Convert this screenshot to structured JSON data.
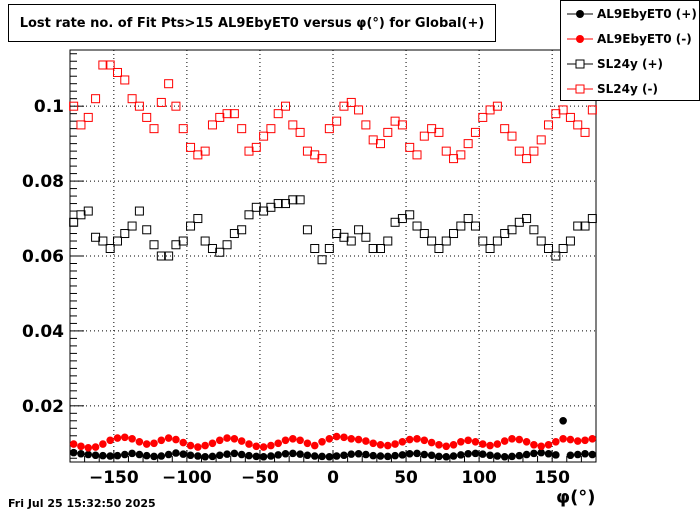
{
  "chart_data": {
    "type": "scatter",
    "title": "Lost rate no. of Fit Pts>15 AL9EbyET0 versus φ(°) for Global(+)",
    "xlabel": "φ(°)",
    "ylabel": "",
    "xlim": [
      -180,
      180
    ],
    "ylim": [
      0.005,
      0.115
    ],
    "grid": true,
    "legend_position": "top-right",
    "x_ticks": [
      -150,
      -100,
      -50,
      0,
      50,
      100,
      150
    ],
    "x_tick_labels": [
      "−150",
      "−100",
      "−50",
      "0",
      "50",
      "100",
      "150"
    ],
    "y_ticks": [
      0.02,
      0.04,
      0.06,
      0.08,
      0.1
    ],
    "y_tick_labels": [
      "0.02",
      "0.04",
      "0.06",
      "0.08",
      "0.1"
    ],
    "x": [
      -177.5,
      -172.5,
      -167.5,
      -162.5,
      -157.5,
      -152.5,
      -147.5,
      -142.5,
      -137.5,
      -132.5,
      -127.5,
      -122.5,
      -117.5,
      -112.5,
      -107.5,
      -102.5,
      -97.5,
      -92.5,
      -87.5,
      -82.5,
      -77.5,
      -72.5,
      -67.5,
      -62.5,
      -57.5,
      -52.5,
      -47.5,
      -42.5,
      -37.5,
      -32.5,
      -27.5,
      -22.5,
      -17.5,
      -12.5,
      -7.5,
      -2.5,
      2.5,
      7.5,
      12.5,
      17.5,
      22.5,
      27.5,
      32.5,
      37.5,
      42.5,
      47.5,
      52.5,
      57.5,
      62.5,
      67.5,
      72.5,
      77.5,
      82.5,
      87.5,
      92.5,
      97.5,
      102.5,
      107.5,
      112.5,
      117.5,
      122.5,
      127.5,
      132.5,
      137.5,
      142.5,
      147.5,
      152.5,
      157.5,
      162.5,
      167.5,
      172.5,
      177.5
    ],
    "series": [
      {
        "name": "AL9EbyET0 (+)",
        "color": "#000000",
        "marker": "filled-circle",
        "values": [
          0.0075,
          0.0072,
          0.007,
          0.0068,
          0.0067,
          0.0066,
          0.0067,
          0.007,
          0.0073,
          0.007,
          0.0067,
          0.0065,
          0.0066,
          0.007,
          0.0074,
          0.0071,
          0.0068,
          0.0066,
          0.0064,
          0.0065,
          0.0068,
          0.0071,
          0.0073,
          0.007,
          0.0067,
          0.0065,
          0.0064,
          0.0066,
          0.0069,
          0.0072,
          0.0073,
          0.0071,
          0.0068,
          0.0066,
          0.0065,
          0.0064,
          0.0066,
          0.0068,
          0.0071,
          0.0072,
          0.007,
          0.0067,
          0.0066,
          0.0065,
          0.0067,
          0.0069,
          0.0072,
          0.0073,
          0.007,
          0.0068,
          0.0065,
          0.0064,
          0.0066,
          0.0069,
          0.0072,
          0.0073,
          0.0071,
          0.0068,
          0.0066,
          0.0064,
          0.0065,
          0.0067,
          0.007,
          0.0073,
          0.0075,
          0.0072,
          0.0069,
          0.016,
          0.0068,
          0.007,
          0.0072,
          0.007
        ]
      },
      {
        "name": "AL9EbyET0 (-)",
        "color": "#ff0000",
        "marker": "filled-circle",
        "values": [
          0.0098,
          0.0092,
          0.0088,
          0.009,
          0.0098,
          0.0108,
          0.0114,
          0.0116,
          0.0112,
          0.0104,
          0.0098,
          0.01,
          0.0108,
          0.0114,
          0.011,
          0.0102,
          0.0094,
          0.009,
          0.0094,
          0.01,
          0.0108,
          0.0114,
          0.0112,
          0.0106,
          0.0098,
          0.0092,
          0.009,
          0.0094,
          0.01,
          0.0108,
          0.0112,
          0.0108,
          0.01,
          0.0094,
          0.0104,
          0.0112,
          0.0118,
          0.0116,
          0.0112,
          0.011,
          0.0106,
          0.01,
          0.0096,
          0.0094,
          0.0098,
          0.0104,
          0.011,
          0.0112,
          0.0108,
          0.0102,
          0.0096,
          0.0092,
          0.0096,
          0.0104,
          0.0108,
          0.0104,
          0.0098,
          0.0094,
          0.0098,
          0.0106,
          0.0112,
          0.011,
          0.0104,
          0.0096,
          0.0092,
          0.0096,
          0.0104,
          0.0112,
          0.011,
          0.0106,
          0.0108,
          0.0112
        ]
      },
      {
        "name": "SL24y (+)",
        "color": "#000000",
        "marker": "open-square",
        "values": [
          0.069,
          0.071,
          0.072,
          0.065,
          0.064,
          0.062,
          0.064,
          0.066,
          0.068,
          0.072,
          0.067,
          0.063,
          0.06,
          0.06,
          0.063,
          0.064,
          0.068,
          0.07,
          0.064,
          0.062,
          0.061,
          0.063,
          0.066,
          0.067,
          0.071,
          0.073,
          0.072,
          0.073,
          0.074,
          0.074,
          0.075,
          0.075,
          0.067,
          0.062,
          0.059,
          0.062,
          0.066,
          0.065,
          0.064,
          0.067,
          0.065,
          0.062,
          0.062,
          0.064,
          0.069,
          0.07,
          0.071,
          0.068,
          0.066,
          0.064,
          0.062,
          0.064,
          0.066,
          0.068,
          0.07,
          0.068,
          0.064,
          0.062,
          0.064,
          0.066,
          0.067,
          0.069,
          0.07,
          0.067,
          0.064,
          0.062,
          0.06,
          0.062,
          0.064,
          0.068,
          0.068,
          0.07
        ]
      },
      {
        "name": "SL24y (-)",
        "color": "#ff0000",
        "marker": "open-square",
        "values": [
          0.1,
          0.095,
          0.097,
          0.102,
          0.111,
          0.111,
          0.109,
          0.107,
          0.102,
          0.1,
          0.097,
          0.094,
          0.101,
          0.106,
          0.1,
          0.094,
          0.089,
          0.087,
          0.088,
          0.095,
          0.097,
          0.098,
          0.098,
          0.094,
          0.088,
          0.089,
          0.092,
          0.094,
          0.098,
          0.1,
          0.095,
          0.093,
          0.088,
          0.087,
          0.086,
          0.094,
          0.096,
          0.1,
          0.101,
          0.099,
          0.095,
          0.091,
          0.09,
          0.093,
          0.096,
          0.095,
          0.089,
          0.087,
          0.092,
          0.094,
          0.093,
          0.088,
          0.086,
          0.087,
          0.09,
          0.093,
          0.097,
          0.099,
          0.1,
          0.094,
          0.092,
          0.088,
          0.086,
          0.088,
          0.091,
          0.095,
          0.098,
          0.099,
          0.097,
          0.095,
          0.093,
          0.099
        ]
      }
    ]
  },
  "footer": {
    "timestamp": "Fri Jul 25 15:32:50 2025"
  }
}
